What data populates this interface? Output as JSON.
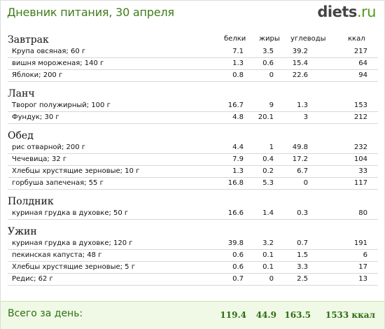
{
  "header": {
    "title": "Дневник питания, 30 апреля",
    "logo_main": "diets",
    "logo_tld": ".ru"
  },
  "columns": {
    "protein": "белки",
    "fat": "жиры",
    "carbs": "углеводы",
    "kcal": "ккал"
  },
  "meals": [
    {
      "name": "Завтрак",
      "items": [
        {
          "name": "Крупа овсяная; 60 г",
          "protein": "7.1",
          "fat": "3.5",
          "carbs": "39.2",
          "kcal": "217"
        },
        {
          "name": "вишня мороженая; 140 г",
          "protein": "1.3",
          "fat": "0.6",
          "carbs": "15.4",
          "kcal": "64"
        },
        {
          "name": "Яблоки; 200 г",
          "protein": "0.8",
          "fat": "0",
          "carbs": "22.6",
          "kcal": "94"
        }
      ]
    },
    {
      "name": "Ланч",
      "items": [
        {
          "name": "Творог полужирный; 100 г",
          "protein": "16.7",
          "fat": "9",
          "carbs": "1.3",
          "kcal": "153"
        },
        {
          "name": "Фундук; 30 г",
          "protein": "4.8",
          "fat": "20.1",
          "carbs": "3",
          "kcal": "212"
        }
      ]
    },
    {
      "name": "Обед",
      "items": [
        {
          "name": "рис отварной; 200 г",
          "protein": "4.4",
          "fat": "1",
          "carbs": "49.8",
          "kcal": "232"
        },
        {
          "name": "Чечевица; 32 г",
          "protein": "7.9",
          "fat": "0.4",
          "carbs": "17.2",
          "kcal": "104"
        },
        {
          "name": "Хлебцы хрустящие зерновые; 10 г",
          "protein": "1.3",
          "fat": "0.2",
          "carbs": "6.7",
          "kcal": "33"
        },
        {
          "name": "горбуша запеченая; 55 г",
          "protein": "16.8",
          "fat": "5.3",
          "carbs": "0",
          "kcal": "117"
        }
      ]
    },
    {
      "name": "Полдник",
      "items": [
        {
          "name": "куриная грудка в духовке; 50 г",
          "protein": "16.6",
          "fat": "1.4",
          "carbs": "0.3",
          "kcal": "80"
        }
      ]
    },
    {
      "name": "Ужин",
      "items": [
        {
          "name": "куриная грудка в духовке; 120 г",
          "protein": "39.8",
          "fat": "3.2",
          "carbs": "0.7",
          "kcal": "191"
        },
        {
          "name": "пекинская капуста; 48 г",
          "protein": "0.6",
          "fat": "0.1",
          "carbs": "1.5",
          "kcal": "6"
        },
        {
          "name": "Хлебцы хрустящие зерновые; 5 г",
          "protein": "0.6",
          "fat": "0.1",
          "carbs": "3.3",
          "kcal": "17"
        },
        {
          "name": "Редис; 62 г",
          "protein": "0.7",
          "fat": "0",
          "carbs": "2.5",
          "kcal": "13"
        }
      ]
    }
  ],
  "total": {
    "label": "Всего за день:",
    "protein": "119.4",
    "fat": "44.9",
    "carbs": "163.5",
    "kcal": "1533 ккал"
  }
}
